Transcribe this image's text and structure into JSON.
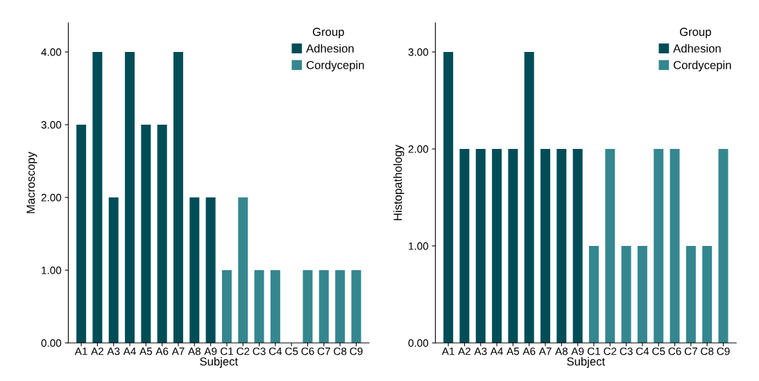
{
  "chart_data": [
    {
      "type": "bar",
      "xlabel": "Subject",
      "ylabel": "Macroscopy",
      "legend_title": "Group",
      "legend": "top right",
      "grid": false,
      "categories": [
        "A1",
        "A2",
        "A3",
        "A4",
        "A5",
        "A6",
        "A7",
        "A8",
        "A9",
        "C1",
        "C2",
        "C3",
        "C4",
        "C5",
        "C6",
        "C7",
        "C8",
        "C9"
      ],
      "series": [
        {
          "name": "Adhesion",
          "color": "#004d57",
          "values": [
            3,
            4,
            2,
            4,
            3,
            3,
            4,
            2,
            2,
            null,
            null,
            null,
            null,
            null,
            null,
            null,
            null,
            null
          ]
        },
        {
          "name": "Cordycepin",
          "color": "#35878f",
          "values": [
            null,
            null,
            null,
            null,
            null,
            null,
            null,
            null,
            null,
            1,
            2,
            1,
            1,
            0,
            1,
            1,
            1,
            1
          ]
        }
      ],
      "ylim": [
        0,
        4.4
      ],
      "yticks": [
        {
          "value": 0,
          "label": "0.00"
        },
        {
          "value": 1,
          "label": "1.00"
        },
        {
          "value": 2,
          "label": "2.00"
        },
        {
          "value": 3,
          "label": "3.00"
        },
        {
          "value": 4,
          "label": "4.00"
        }
      ]
    },
    {
      "type": "bar",
      "xlabel": "Subject",
      "ylabel": "Histopathology",
      "legend_title": "Group",
      "legend": "top right",
      "grid": false,
      "categories": [
        "A1",
        "A2",
        "A3",
        "A4",
        "A5",
        "A6",
        "A7",
        "A8",
        "A9",
        "C1",
        "C2",
        "C3",
        "C4",
        "C5",
        "C6",
        "C7",
        "C8",
        "C9"
      ],
      "series": [
        {
          "name": "Adhesion",
          "color": "#004d57",
          "values": [
            3,
            2,
            2,
            2,
            2,
            3,
            2,
            2,
            2,
            null,
            null,
            null,
            null,
            null,
            null,
            null,
            null,
            null
          ]
        },
        {
          "name": "Cordycepin",
          "color": "#35878f",
          "values": [
            null,
            null,
            null,
            null,
            null,
            null,
            null,
            null,
            null,
            1,
            2,
            1,
            1,
            2,
            2,
            1,
            1,
            2
          ]
        }
      ],
      "ylim": [
        0,
        3.3
      ],
      "yticks": [
        {
          "value": 0,
          "label": "0.00"
        },
        {
          "value": 1,
          "label": "1.00"
        },
        {
          "value": 2,
          "label": "2.00"
        },
        {
          "value": 3,
          "label": "3.00"
        }
      ]
    }
  ]
}
